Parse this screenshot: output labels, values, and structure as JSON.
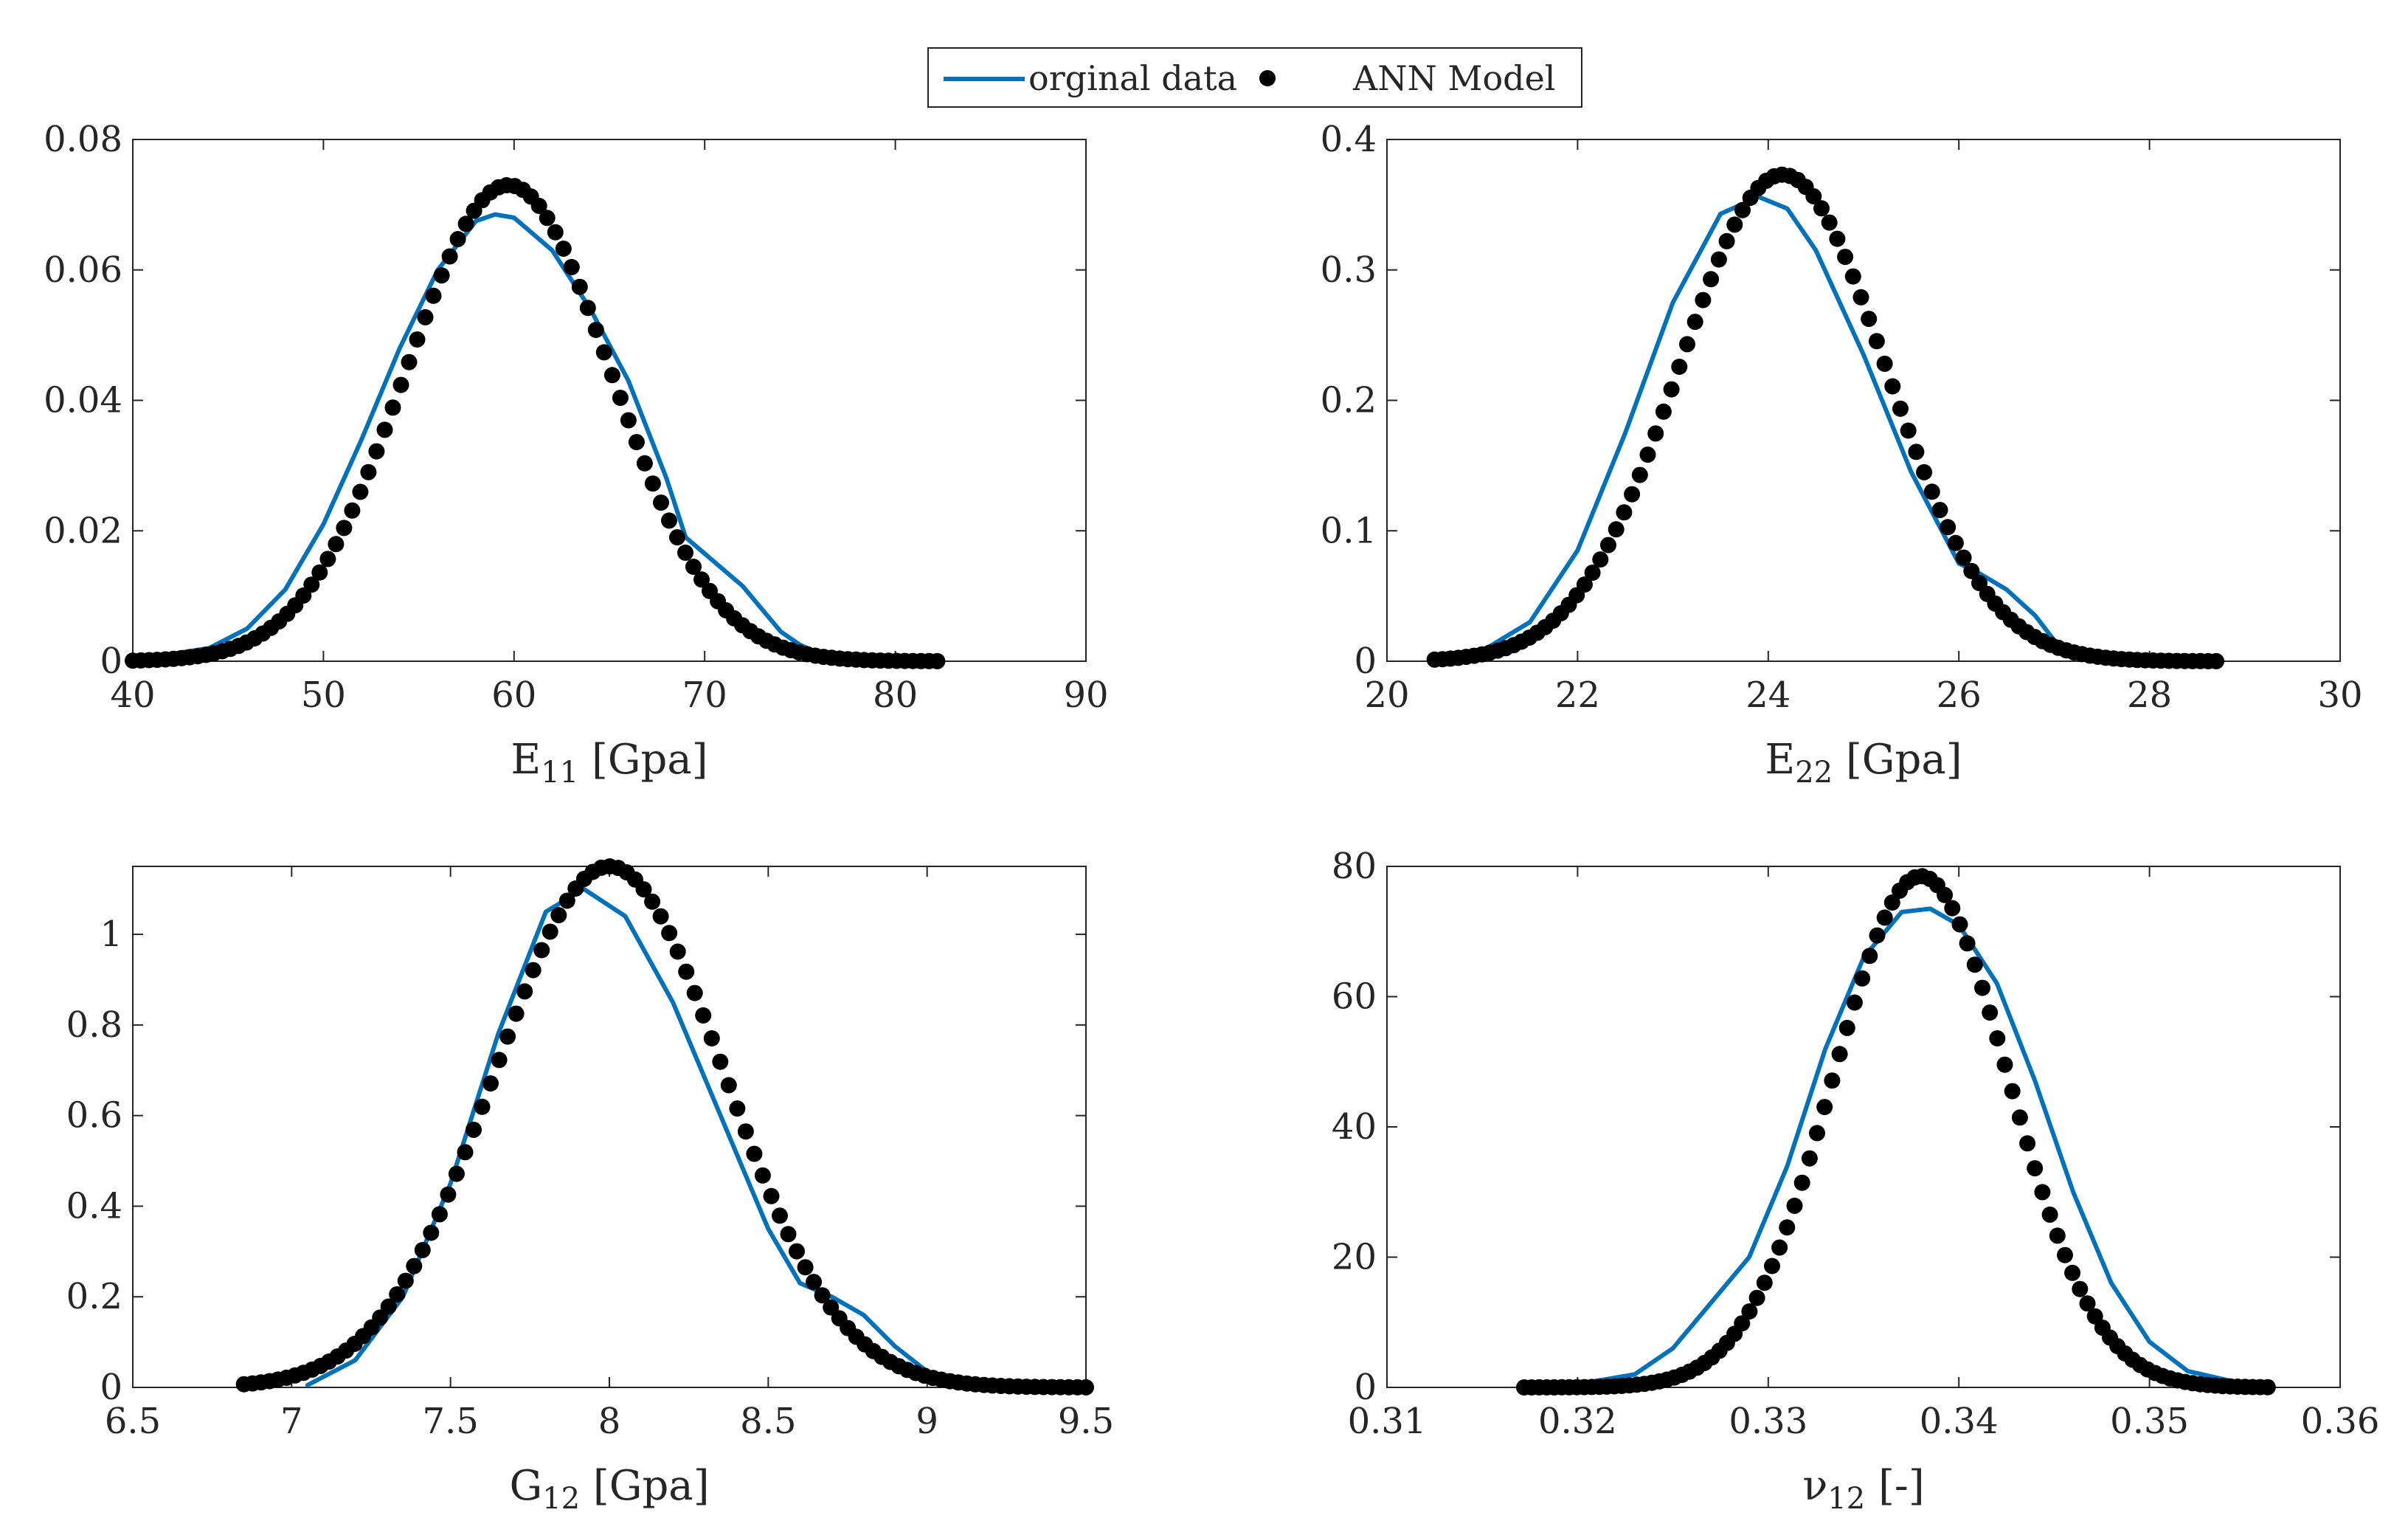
{
  "legend": {
    "line_label": "orginal data",
    "marker_label": "ANN Model",
    "line_color": "#0072BD",
    "marker_color": "#000000"
  },
  "chart_data": [
    {
      "type": "line",
      "title": "",
      "xlabel": "E11 [Gpa]",
      "xlabel_main": "E",
      "xlabel_sub": "11",
      "xlabel_rest": " [Gpa]",
      "xlim": [
        40,
        90
      ],
      "ylim": [
        0,
        0.08
      ],
      "xticks": [
        40,
        50,
        60,
        70,
        80,
        90
      ],
      "xtick_labels": [
        "40",
        "50",
        "60",
        "70",
        "80",
        "90"
      ],
      "yticks": [
        0,
        0.02,
        0.04,
        0.06,
        0.08
      ],
      "ytick_labels": [
        "0",
        "0.02",
        "0.04",
        "0.06",
        "0.08"
      ],
      "series": [
        {
          "name": "orginal data",
          "style": "line",
          "x": [
            40,
            44,
            46,
            48,
            50,
            52,
            54,
            56,
            58,
            59,
            60,
            62,
            64,
            66,
            68,
            69,
            70,
            72,
            73,
            74,
            75,
            76,
            78,
            80,
            82
          ],
          "y": [
            0.0002,
            0.002,
            0.005,
            0.011,
            0.021,
            0.034,
            0.048,
            0.06,
            0.0675,
            0.0685,
            0.068,
            0.063,
            0.054,
            0.043,
            0.028,
            0.019,
            0.0165,
            0.0115,
            0.008,
            0.0045,
            0.0025,
            0.0012,
            0.0005,
            0.0002,
            0.0001
          ]
        },
        {
          "name": "ANN Model",
          "style": "markers",
          "gaussian": {
            "mean": 59.7,
            "sd": 5.4,
            "peak": 0.073
          },
          "x_range": [
            40,
            82.2
          ],
          "count": 100
        }
      ]
    },
    {
      "type": "line",
      "title": "",
      "xlabel": "E22 [Gpa]",
      "xlabel_main": "E",
      "xlabel_sub": "22",
      "xlabel_rest": " [Gpa]",
      "xlim": [
        20,
        30
      ],
      "ylim": [
        0,
        0.4
      ],
      "xticks": [
        20,
        22,
        24,
        26,
        28,
        30
      ],
      "xtick_labels": [
        "20",
        "22",
        "24",
        "26",
        "28",
        "30"
      ],
      "yticks": [
        0,
        0.1,
        0.2,
        0.3,
        0.4
      ],
      "ytick_labels": [
        "0",
        "0.1",
        "0.2",
        "0.3",
        "0.4"
      ],
      "series": [
        {
          "name": "orginal data",
          "style": "line",
          "x": [
            20.5,
            21,
            21.5,
            22,
            22.5,
            23,
            23.5,
            23.9,
            24.2,
            24.5,
            25,
            25.5,
            26,
            26.2,
            26.5,
            26.8,
            27,
            27.3,
            27.6,
            28
          ],
          "y": [
            0.002,
            0.008,
            0.03,
            0.085,
            0.175,
            0.275,
            0.343,
            0.356,
            0.347,
            0.315,
            0.235,
            0.145,
            0.075,
            0.068,
            0.055,
            0.035,
            0.016,
            0.006,
            0.002,
            0.001
          ]
        },
        {
          "name": "ANN Model",
          "style": "markers",
          "gaussian": {
            "mean": 24.15,
            "sd": 1.08,
            "peak": 0.373
          },
          "x_range": [
            20.5,
            28.7
          ],
          "count": 100
        }
      ]
    },
    {
      "type": "line",
      "title": "",
      "xlabel": "G12 [Gpa]",
      "xlabel_main": "G",
      "xlabel_sub": "12",
      "xlabel_rest": " [Gpa]",
      "xlim": [
        6.5,
        9.5
      ],
      "ylim": [
        0,
        1.15
      ],
      "xticks": [
        6.5,
        7,
        7.5,
        8,
        8.5,
        9,
        9.5
      ],
      "xtick_labels": [
        "6.5",
        "7",
        "7.5",
        "8",
        "8.5",
        "9",
        "9.5"
      ],
      "yticks": [
        0,
        0.2,
        0.4,
        0.6,
        0.8,
        1
      ],
      "ytick_labels": [
        "0",
        "0.2",
        "0.4",
        "0.6",
        "0.8",
        "1"
      ],
      "series": [
        {
          "name": "orginal data",
          "style": "line",
          "x": [
            7.05,
            7.2,
            7.35,
            7.5,
            7.65,
            7.8,
            7.92,
            8.05,
            8.2,
            8.35,
            8.5,
            8.6,
            8.7,
            8.8,
            8.9,
            9.0,
            9.1,
            9.3,
            9.5
          ],
          "y": [
            0.005,
            0.06,
            0.2,
            0.45,
            0.78,
            1.05,
            1.1,
            1.04,
            0.85,
            0.6,
            0.35,
            0.23,
            0.2,
            0.16,
            0.09,
            0.035,
            0.015,
            0.005,
            0.002
          ]
        },
        {
          "name": "ANN Model",
          "style": "markers",
          "gaussian": {
            "mean": 8.0,
            "sd": 0.36,
            "peak": 1.15
          },
          "x_range": [
            6.85,
            9.5
          ],
          "count": 100
        }
      ]
    },
    {
      "type": "line",
      "title": "",
      "xlabel": "ν12 [-]",
      "xlabel_main": "ν",
      "xlabel_sub": "12",
      "xlabel_rest": " [-]",
      "xlim": [
        0.31,
        0.36
      ],
      "ylim": [
        0,
        80
      ],
      "xticks": [
        0.31,
        0.32,
        0.33,
        0.34,
        0.35,
        0.36
      ],
      "xtick_labels": [
        "0.31",
        "0.32",
        "0.33",
        "0.34",
        "0.35",
        "0.36"
      ],
      "yticks": [
        0,
        20,
        40,
        60,
        80
      ],
      "ytick_labels": [
        "0",
        "20",
        "40",
        "60",
        "80"
      ],
      "series": [
        {
          "name": "orginal data",
          "style": "line",
          "x": [
            0.32,
            0.323,
            0.325,
            0.327,
            0.329,
            0.331,
            0.333,
            0.335,
            0.337,
            0.3385,
            0.34,
            0.342,
            0.344,
            0.346,
            0.348,
            0.35,
            0.352,
            0.355
          ],
          "y": [
            0.5,
            2,
            6,
            13,
            20,
            34,
            52,
            66,
            73,
            73.5,
            71,
            62,
            47,
            30,
            16,
            7,
            2.5,
            0.5
          ]
        },
        {
          "name": "ANN Model",
          "style": "markers",
          "gaussian": {
            "mean": 0.338,
            "sd": 0.0046,
            "peak": 78.5
          },
          "x_range": [
            0.3172,
            0.3562
          ],
          "count": 100
        }
      ]
    }
  ]
}
